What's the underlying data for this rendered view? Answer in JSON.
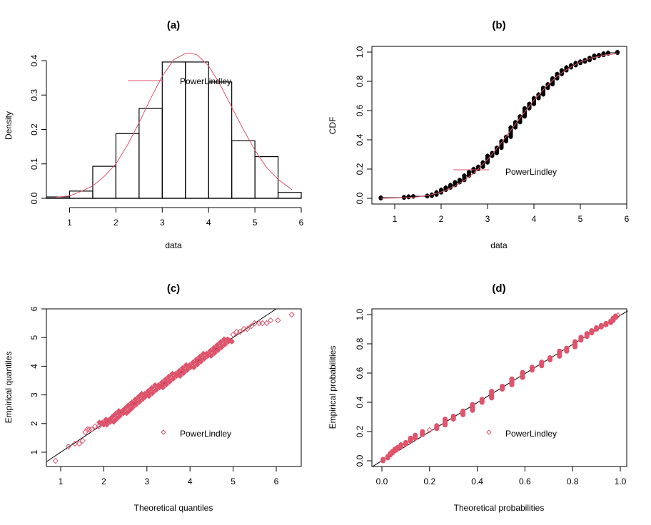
{
  "colors": {
    "fit": "#DF536B",
    "ink": "#000000",
    "background": "#FFFFFF"
  },
  "chart_data": [
    {
      "panel": "a",
      "type": "bar",
      "title": "(a)",
      "xlabel": "data",
      "ylabel": "Density",
      "xlim": [
        0.5,
        6
      ],
      "ylim": [
        0,
        0.4
      ],
      "xticks": [
        "1",
        "2",
        "3",
        "4",
        "5",
        "6"
      ],
      "xtick_values": [
        1,
        2,
        3,
        4,
        5,
        6
      ],
      "yticks": [
        "0.0",
        "0.1",
        "0.2",
        "0.3",
        "0.4"
      ],
      "ytick_values": [
        0,
        0.1,
        0.2,
        0.3,
        0.4
      ],
      "bins": [
        {
          "from": 0.5,
          "to": 1.0,
          "density": 0.004
        },
        {
          "from": 1.0,
          "to": 1.5,
          "density": 0.021
        },
        {
          "from": 1.5,
          "to": 2.0,
          "density": 0.093
        },
        {
          "from": 2.0,
          "to": 2.5,
          "density": 0.188
        },
        {
          "from": 2.5,
          "to": 3.0,
          "density": 0.261
        },
        {
          "from": 3.0,
          "to": 3.5,
          "density": 0.396
        },
        {
          "from": 3.5,
          "to": 4.0,
          "density": 0.396
        },
        {
          "from": 4.0,
          "to": 4.5,
          "density": 0.338
        },
        {
          "from": 4.5,
          "to": 5.0,
          "density": 0.167
        },
        {
          "from": 5.0,
          "to": 5.5,
          "density": 0.121
        },
        {
          "from": 5.5,
          "to": 6.0,
          "density": 0.017
        }
      ],
      "fitted_curve": {
        "name": "PowerLindley",
        "x": [
          0.7,
          1.0,
          1.25,
          1.5,
          1.75,
          2.0,
          2.25,
          2.5,
          2.75,
          3.0,
          3.25,
          3.5,
          3.6,
          3.75,
          4.0,
          4.25,
          4.5,
          4.75,
          5.0,
          5.25,
          5.5,
          5.8
        ],
        "y": [
          0.003,
          0.007,
          0.02,
          0.036,
          0.064,
          0.1,
          0.155,
          0.22,
          0.29,
          0.355,
          0.403,
          0.421,
          0.422,
          0.417,
          0.385,
          0.33,
          0.265,
          0.2,
          0.14,
          0.09,
          0.055,
          0.025
        ]
      },
      "legend": {
        "entries": [
          "PowerLindley"
        ],
        "symbol": "line",
        "placement": "top-center"
      }
    },
    {
      "panel": "b",
      "type": "line",
      "title": "(b)",
      "xlabel": "data",
      "ylabel": "CDF",
      "xlim": [
        0.5,
        6
      ],
      "ylim": [
        0,
        1
      ],
      "xticks": [
        "1",
        "2",
        "3",
        "4",
        "5",
        "6"
      ],
      "xtick_values": [
        1,
        2,
        3,
        4,
        5,
        6
      ],
      "yticks": [
        "0.0",
        "0.2",
        "0.4",
        "0.6",
        "0.8",
        "1.0"
      ],
      "ytick_values": [
        0,
        0.2,
        0.4,
        0.6,
        0.8,
        1.0
      ],
      "empirical_steps": [
        [
          0.7,
          0.0,
          0.004
        ],
        [
          1.2,
          0.004,
          0.008
        ],
        [
          1.3,
          0.008,
          0.012
        ],
        [
          1.4,
          0.012,
          0.014
        ],
        [
          1.7,
          0.014,
          0.017
        ],
        [
          1.8,
          0.017,
          0.025
        ],
        [
          1.9,
          0.025,
          0.04
        ],
        [
          2.0,
          0.04,
          0.058
        ],
        [
          2.1,
          0.058,
          0.073
        ],
        [
          2.2,
          0.073,
          0.09
        ],
        [
          2.3,
          0.09,
          0.11
        ],
        [
          2.4,
          0.11,
          0.125
        ],
        [
          2.5,
          0.125,
          0.155
        ],
        [
          2.6,
          0.155,
          0.18
        ],
        [
          2.7,
          0.18,
          0.2
        ],
        [
          2.8,
          0.2,
          0.215
        ],
        [
          2.9,
          0.215,
          0.245
        ],
        [
          3.0,
          0.245,
          0.29
        ],
        [
          3.1,
          0.29,
          0.31
        ],
        [
          3.2,
          0.31,
          0.345
        ],
        [
          3.3,
          0.345,
          0.39
        ],
        [
          3.4,
          0.39,
          0.42
        ],
        [
          3.5,
          0.42,
          0.485
        ],
        [
          3.6,
          0.485,
          0.52
        ],
        [
          3.7,
          0.52,
          0.56
        ],
        [
          3.8,
          0.56,
          0.615
        ],
        [
          3.9,
          0.615,
          0.645
        ],
        [
          4.0,
          0.645,
          0.685
        ],
        [
          4.1,
          0.685,
          0.71
        ],
        [
          4.2,
          0.71,
          0.755
        ],
        [
          4.3,
          0.755,
          0.78
        ],
        [
          4.4,
          0.78,
          0.82
        ],
        [
          4.5,
          0.82,
          0.85
        ],
        [
          4.6,
          0.85,
          0.875
        ],
        [
          4.7,
          0.875,
          0.895
        ],
        [
          4.8,
          0.895,
          0.91
        ],
        [
          4.9,
          0.91,
          0.925
        ],
        [
          5.0,
          0.925,
          0.935
        ],
        [
          5.1,
          0.935,
          0.945
        ],
        [
          5.2,
          0.945,
          0.96
        ],
        [
          5.3,
          0.96,
          0.975
        ],
        [
          5.4,
          0.975,
          0.98
        ],
        [
          5.5,
          0.98,
          0.99
        ],
        [
          5.6,
          0.99,
          0.995
        ],
        [
          5.8,
          0.995,
          1.0
        ]
      ],
      "fitted_curve": {
        "name": "PowerLindley",
        "x": [
          0.7,
          1.0,
          1.25,
          1.5,
          1.75,
          2.0,
          2.25,
          2.5,
          2.75,
          3.0,
          3.25,
          3.5,
          3.75,
          4.0,
          4.25,
          4.5,
          4.75,
          5.0,
          5.25,
          5.5,
          5.8
        ],
        "y": [
          0.0,
          0.002,
          0.005,
          0.01,
          0.022,
          0.042,
          0.075,
          0.122,
          0.185,
          0.265,
          0.36,
          0.465,
          0.57,
          0.67,
          0.76,
          0.835,
          0.89,
          0.932,
          0.96,
          0.978,
          0.99
        ]
      },
      "legend": {
        "entries": [
          "PowerLindley"
        ],
        "symbol": "line",
        "placement": "center-right"
      }
    },
    {
      "panel": "c",
      "type": "scatter",
      "title": "(c)",
      "xlabel": "Theoretical quantiles",
      "ylabel": "Empirical quantiles",
      "xlim": [
        0.68,
        6.6
      ],
      "ylim": [
        0.5,
        6
      ],
      "xticks": [
        "1",
        "2",
        "3",
        "4",
        "5",
        "6"
      ],
      "xtick_values": [
        1,
        2,
        3,
        4,
        5,
        6
      ],
      "yticks": [
        "1",
        "2",
        "3",
        "4",
        "5",
        "6"
      ],
      "ytick_values": [
        1,
        2,
        3,
        4,
        5,
        6
      ],
      "reference_line": {
        "slope": 1,
        "intercept": 0
      },
      "points": {
        "x": [
          0.88,
          1.18,
          1.33,
          1.43,
          1.51,
          1.57,
          1.62,
          1.66,
          1.72,
          1.8,
          1.88,
          1.95,
          2.02,
          2.1,
          2.18,
          2.25,
          2.32,
          2.4,
          2.48,
          2.55,
          2.62,
          2.7,
          2.78,
          2.86,
          2.93,
          3.0,
          3.08,
          3.16,
          3.24,
          3.32,
          3.4,
          3.48,
          3.56,
          3.64,
          3.72,
          3.8,
          3.88,
          3.96,
          4.04,
          4.12,
          4.2,
          4.28,
          4.36,
          4.44,
          4.52,
          4.6,
          4.68,
          4.76,
          4.84,
          4.92,
          5.0,
          5.08,
          5.16,
          5.25,
          5.33,
          5.42,
          5.5,
          5.6,
          5.68,
          5.78,
          5.87,
          6.04,
          6.36
        ],
        "y": [
          0.7,
          1.2,
          1.3,
          1.3,
          1.4,
          1.7,
          1.8,
          1.8,
          1.8,
          1.9,
          1.9,
          2.0,
          2.0,
          2.1,
          2.1,
          2.2,
          2.3,
          2.4,
          2.4,
          2.5,
          2.6,
          2.7,
          2.8,
          2.9,
          3.0,
          3.0,
          3.1,
          3.2,
          3.3,
          3.3,
          3.4,
          3.5,
          3.6,
          3.7,
          3.7,
          3.8,
          3.9,
          4.0,
          4.0,
          4.1,
          4.2,
          4.3,
          4.4,
          4.4,
          4.5,
          4.6,
          4.7,
          4.8,
          4.9,
          4.9,
          5.1,
          5.2,
          5.2,
          5.3,
          5.3,
          5.4,
          5.5,
          5.5,
          5.5,
          5.5,
          5.6,
          5.6,
          5.8
        ]
      },
      "legend": {
        "entries": [
          "PowerLindley"
        ],
        "symbol": "open-diamond",
        "placement": "bottom-right"
      }
    },
    {
      "panel": "d",
      "type": "scatter",
      "title": "(d)",
      "xlabel": "Theoretical probabilities",
      "ylabel": "Empirical probabilities",
      "xlim": [
        -0.04,
        1.04
      ],
      "ylim": [
        -0.04,
        1.04
      ],
      "xticks": [
        "0.0",
        "0.2",
        "0.4",
        "0.6",
        "0.8",
        "1.0"
      ],
      "xtick_values": [
        0,
        0.2,
        0.4,
        0.6,
        0.8,
        1.0
      ],
      "yticks": [
        "0.0",
        "0.2",
        "0.4",
        "0.6",
        "0.8",
        "1.0"
      ],
      "ytick_values": [
        0,
        0.2,
        0.4,
        0.6,
        0.8,
        1.0
      ],
      "reference_line": {
        "slope": 1,
        "intercept": 0
      },
      "point_groups": [
        [
          0.005,
          0.0,
          0.01
        ],
        [
          0.025,
          0.02,
          0.03
        ],
        [
          0.035,
          0.04,
          0.05
        ],
        [
          0.045,
          0.055,
          0.065
        ],
        [
          0.055,
          0.07,
          0.08
        ],
        [
          0.065,
          0.08,
          0.09
        ],
        [
          0.08,
          0.095,
          0.11
        ],
        [
          0.1,
          0.115,
          0.125
        ],
        [
          0.12,
          0.135,
          0.155
        ],
        [
          0.14,
          0.155,
          0.175
        ],
        [
          0.17,
          0.18,
          0.2
        ],
        [
          0.2,
          0.21,
          0.21
        ],
        [
          0.23,
          0.22,
          0.24
        ],
        [
          0.265,
          0.245,
          0.285
        ],
        [
          0.3,
          0.285,
          0.305
        ],
        [
          0.34,
          0.315,
          0.34
        ],
        [
          0.38,
          0.345,
          0.385
        ],
        [
          0.42,
          0.4,
          0.42
        ],
        [
          0.46,
          0.43,
          0.475
        ],
        [
          0.505,
          0.49,
          0.51
        ],
        [
          0.545,
          0.52,
          0.56
        ],
        [
          0.59,
          0.57,
          0.605
        ],
        [
          0.63,
          0.62,
          0.64
        ],
        [
          0.67,
          0.65,
          0.675
        ],
        [
          0.705,
          0.69,
          0.705
        ],
        [
          0.745,
          0.715,
          0.75
        ],
        [
          0.775,
          0.75,
          0.77
        ],
        [
          0.81,
          0.78,
          0.815
        ],
        [
          0.835,
          0.825,
          0.845
        ],
        [
          0.86,
          0.85,
          0.87
        ],
        [
          0.88,
          0.875,
          0.89
        ],
        [
          0.9,
          0.9,
          0.91
        ],
        [
          0.92,
          0.915,
          0.925
        ],
        [
          0.94,
          0.93,
          0.94
        ],
        [
          0.96,
          0.945,
          0.955
        ],
        [
          0.97,
          0.96,
          0.975
        ],
        [
          0.98,
          0.98,
          0.99
        ],
        [
          0.99,
          0.995,
          1.0
        ]
      ],
      "legend": {
        "entries": [
          "PowerLindley"
        ],
        "symbol": "open-diamond",
        "placement": "bottom-right"
      }
    }
  ]
}
